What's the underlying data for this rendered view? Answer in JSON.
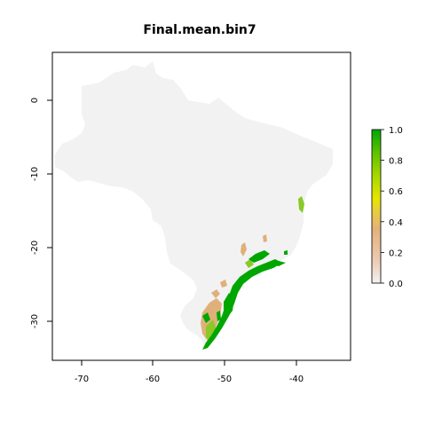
{
  "title": "Final.mean.bin7",
  "map": {
    "x_ticks": [
      "-70",
      "-60",
      "-50",
      "-40"
    ],
    "y_ticks": [
      "0",
      "-10",
      "-20",
      "-30"
    ],
    "xlim": [
      -74,
      -33
    ],
    "ylim": [
      -35,
      7
    ],
    "land_color": "#f2f2f2",
    "high_suitability_color": "#00a600",
    "mid_suitability_color": "#8ac926",
    "low_suitability_color": "#e0b07a"
  },
  "legend": {
    "labels": [
      "1.0",
      "0.8",
      "0.6",
      "0.4",
      "0.2",
      "0.0"
    ],
    "range": [
      0,
      1
    ],
    "colors": [
      "#f2f2f2",
      "#eec9b2",
      "#e4b17a",
      "#e8c84a",
      "#e6e600",
      "#a6d800",
      "#5fc200",
      "#00a600"
    ]
  }
}
